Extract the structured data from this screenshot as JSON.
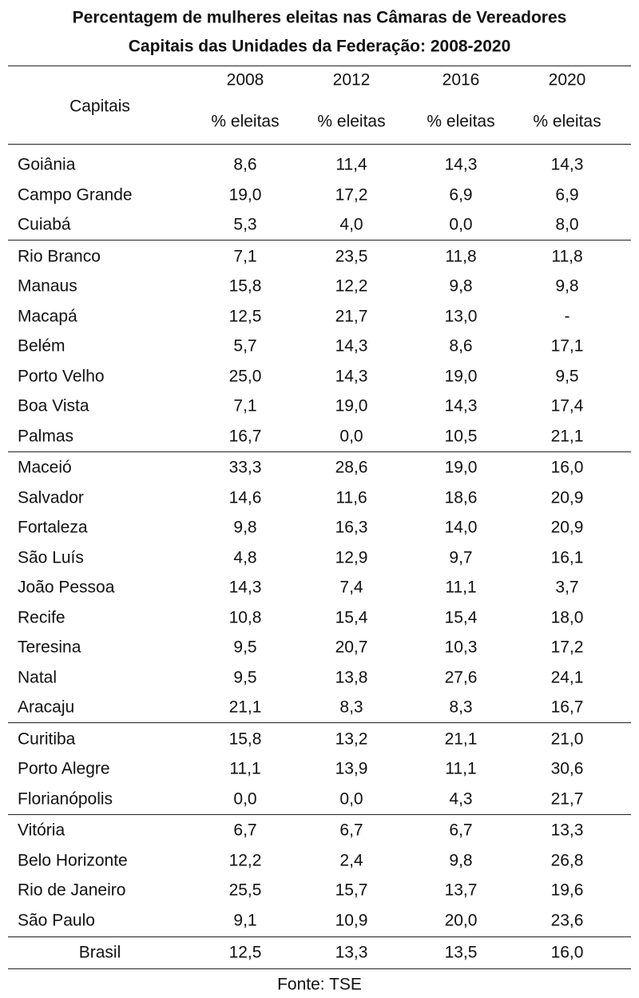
{
  "header": {
    "title": "Percentagem de mulheres eleitas nas Câmaras de Vereadores",
    "subtitle": "Capitais das Unidades da Federação: 2008-2020"
  },
  "table": {
    "row_header": "Capitais",
    "years": [
      "2008",
      "2012",
      "2016",
      "2020"
    ],
    "subheaders": [
      "% eleitas",
      "% eleitas",
      "% eleitas",
      "% eleitas"
    ],
    "groups": [
      {
        "rows": [
          [
            "Goiânia",
            "8,6",
            "11,4",
            "14,3",
            "14,3"
          ],
          [
            "Campo Grande",
            "19,0",
            "17,2",
            "6,9",
            "6,9"
          ],
          [
            "Cuiabá",
            "5,3",
            "4,0",
            "0,0",
            "8,0"
          ]
        ]
      },
      {
        "rows": [
          [
            "Rio Branco",
            "7,1",
            "23,5",
            "11,8",
            "11,8"
          ],
          [
            "Manaus",
            "15,8",
            "12,2",
            "9,8",
            "9,8"
          ],
          [
            "Macapá",
            "12,5",
            "21,7",
            "13,0",
            "-"
          ],
          [
            "Belém",
            "5,7",
            "14,3",
            "8,6",
            "17,1"
          ],
          [
            "Porto Velho",
            "25,0",
            "14,3",
            "19,0",
            "9,5"
          ],
          [
            "Boa Vista",
            "7,1",
            "19,0",
            "14,3",
            "17,4"
          ],
          [
            "Palmas",
            "16,7",
            "0,0",
            "10,5",
            "21,1"
          ]
        ]
      },
      {
        "rows": [
          [
            "Maceió",
            "33,3",
            "28,6",
            "19,0",
            "16,0"
          ],
          [
            "Salvador",
            "14,6",
            "11,6",
            "18,6",
            "20,9"
          ],
          [
            "Fortaleza",
            "9,8",
            "16,3",
            "14,0",
            "20,9"
          ],
          [
            "São Luís",
            "4,8",
            "12,9",
            "9,7",
            "16,1"
          ],
          [
            "João Pessoa",
            "14,3",
            "7,4",
            "11,1",
            "3,7"
          ],
          [
            "Recife",
            "10,8",
            "15,4",
            "15,4",
            "18,0"
          ],
          [
            "Teresina",
            "9,5",
            "20,7",
            "10,3",
            "17,2"
          ],
          [
            "Natal",
            "9,5",
            "13,8",
            "27,6",
            "24,1"
          ],
          [
            "Aracaju",
            "21,1",
            "8,3",
            "8,3",
            "16,7"
          ]
        ]
      },
      {
        "rows": [
          [
            "Curitiba",
            "15,8",
            "13,2",
            "21,1",
            "21,0"
          ],
          [
            "Porto Alegre",
            "11,1",
            "13,9",
            "11,1",
            "30,6"
          ],
          [
            "Florianópolis",
            "0,0",
            "0,0",
            "4,3",
            "21,7"
          ]
        ]
      },
      {
        "rows": [
          [
            "Vitória",
            "6,7",
            "6,7",
            "6,7",
            "13,3"
          ],
          [
            "Belo Horizonte",
            "12,2",
            "2,4",
            "9,8",
            "26,8"
          ],
          [
            "Rio de Janeiro",
            "25,5",
            "15,7",
            "13,7",
            "19,6"
          ],
          [
            "São Paulo",
            "9,1",
            "10,9",
            "20,0",
            "23,6"
          ]
        ]
      }
    ],
    "total": [
      "Brasil",
      "12,5",
      "13,3",
      "13,5",
      "16,0"
    ]
  },
  "footer": {
    "source": "Fonte: TSE"
  }
}
